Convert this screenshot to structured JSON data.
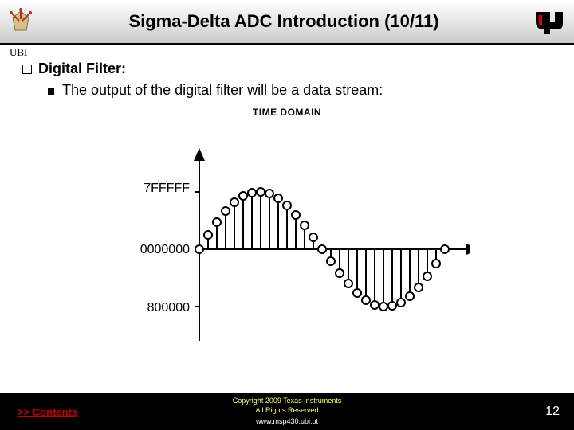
{
  "header": {
    "title": "Sigma-Delta ADC Introduction (10/11)",
    "ubi_label": "UBI"
  },
  "content": {
    "heading": "Digital Filter:",
    "sub": "The output of the digital filter will be a data stream:"
  },
  "chart": {
    "title": "TIME DOMAIN",
    "y_labels": {
      "top": "7FFFFF",
      "mid": "0000000",
      "bot": "800000"
    },
    "colors": {
      "axis": "#000000",
      "marker_stroke": "#000000",
      "marker_fill": "#ffffff"
    },
    "stroke_width": 2,
    "marker_radius": 5,
    "samples_pos": [
      0,
      18,
      34,
      48,
      59,
      67,
      71,
      72,
      70,
      64,
      55,
      43,
      30,
      15,
      0
    ],
    "samples_neg": [
      0,
      -15,
      -30,
      -43,
      -55,
      -64,
      -70,
      -72,
      -71,
      -67,
      -59,
      -48,
      -34,
      -18,
      0
    ]
  },
  "footer": {
    "contents": ">> Contents",
    "copyright1": "Copyright 2009 Texas Instruments",
    "copyright2": "All Rights Reserved",
    "url": "www.msp430.ubi.pt",
    "slide_number": "12"
  }
}
